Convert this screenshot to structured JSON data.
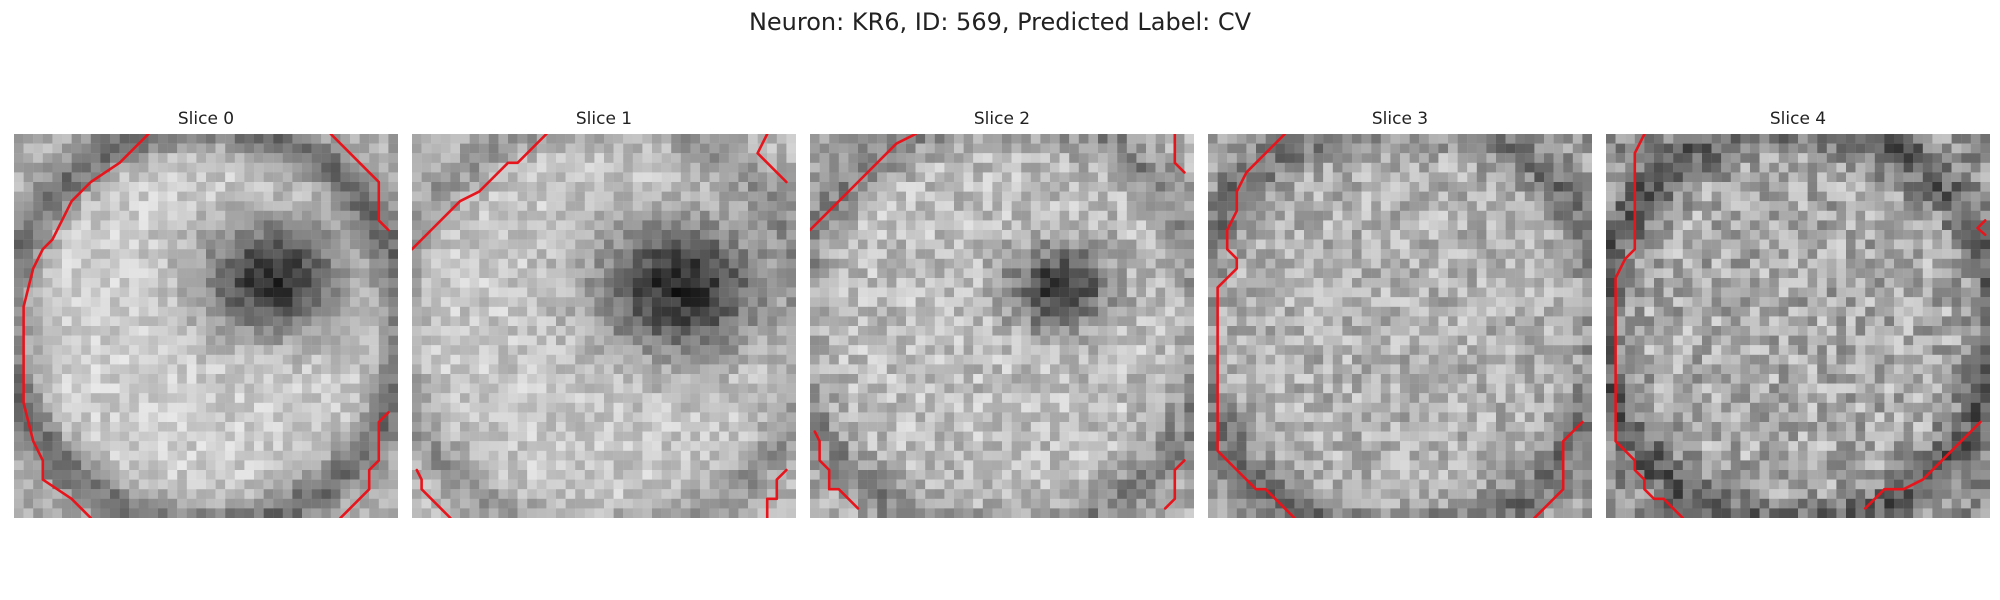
{
  "figure": {
    "title": "Neuron: KR6, ID: 569, Predicted Label: CV"
  },
  "panels": [
    {
      "title": "Slice 0",
      "image": "grayscale-ring-slice",
      "contour_color": "#e8141c"
    },
    {
      "title": "Slice 1",
      "image": "grayscale-ring-slice",
      "contour_color": "#e8141c"
    },
    {
      "title": "Slice 2",
      "image": "grayscale-ring-slice",
      "contour_color": "#e8141c"
    },
    {
      "title": "Slice 3",
      "image": "grayscale-ring-slice",
      "contour_color": "#e8141c"
    },
    {
      "title": "Slice 4",
      "image": "grayscale-ring-slice",
      "contour_color": "#e8141c"
    }
  ]
}
